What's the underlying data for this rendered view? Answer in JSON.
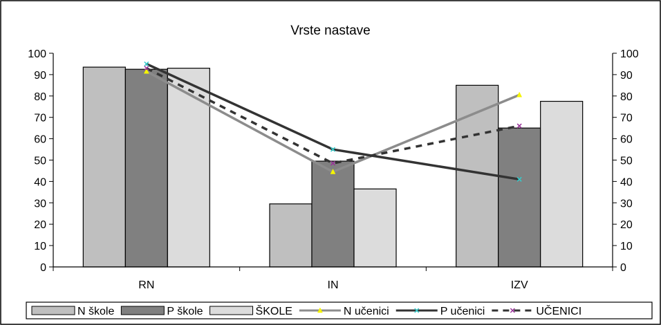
{
  "chart_data": {
    "type": "bar",
    "title": "Vrste nastave",
    "categories": [
      "RN",
      "IN",
      "IZV"
    ],
    "ylim": [
      0,
      100
    ],
    "y_ticks": [
      "0",
      "10",
      "20",
      "30",
      "40",
      "50",
      "60",
      "70",
      "80",
      "90",
      "100"
    ],
    "secondary_ylim": [
      0,
      100
    ],
    "grid": false,
    "legend_position": "bottom",
    "bar_series": [
      {
        "name": "N škole",
        "values": [
          93.5,
          29.5,
          85
        ],
        "color": "#bfbfbf"
      },
      {
        "name": "P škole",
        "values": [
          92.5,
          49.5,
          65
        ],
        "color": "#808080"
      },
      {
        "name": "ŠKOLE",
        "values": [
          93,
          36.5,
          77.5
        ],
        "color": "#dcdcdc"
      }
    ],
    "line_series": [
      {
        "name": "N učenici",
        "values": [
          91.5,
          44.5,
          80.5
        ],
        "color": "#8c8c8c",
        "marker_color": "#f5f500",
        "marker": "triangle",
        "dash": "solid"
      },
      {
        "name": "P učenici",
        "values": [
          95,
          55,
          41
        ],
        "color": "#333333",
        "marker_color": "#33cccc",
        "marker": "x",
        "dash": "solid"
      },
      {
        "name": "UČENICI",
        "values": [
          93,
          48.5,
          66
        ],
        "color": "#333333",
        "marker_color": "#993399",
        "marker": "x",
        "dash": "dashed"
      }
    ]
  }
}
